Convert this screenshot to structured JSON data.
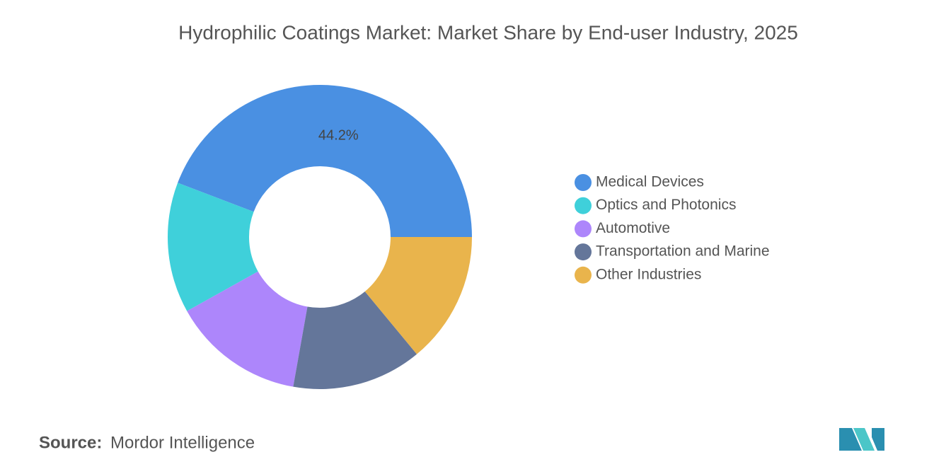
{
  "chart_data": {
    "type": "donut",
    "title": "Hydrophilic Coatings Market: Market Share by End-user Industry, 2025",
    "categories": [
      "Medical Devices",
      "Optics and Photonics",
      "Automotive",
      "Transportation and Marine",
      "Other Industries"
    ],
    "values": [
      44.2,
      13.9,
      14.1,
      13.8,
      14.0
    ],
    "value_labels": [
      "44.2%",
      null,
      null,
      null,
      null
    ],
    "colors": [
      "#4a90e2",
      "#3fd0da",
      "#ad86fb",
      "#64769a",
      "#e9b44c"
    ],
    "legend": "right",
    "source_label": "Source:",
    "source": "Mordor Intelligence"
  }
}
